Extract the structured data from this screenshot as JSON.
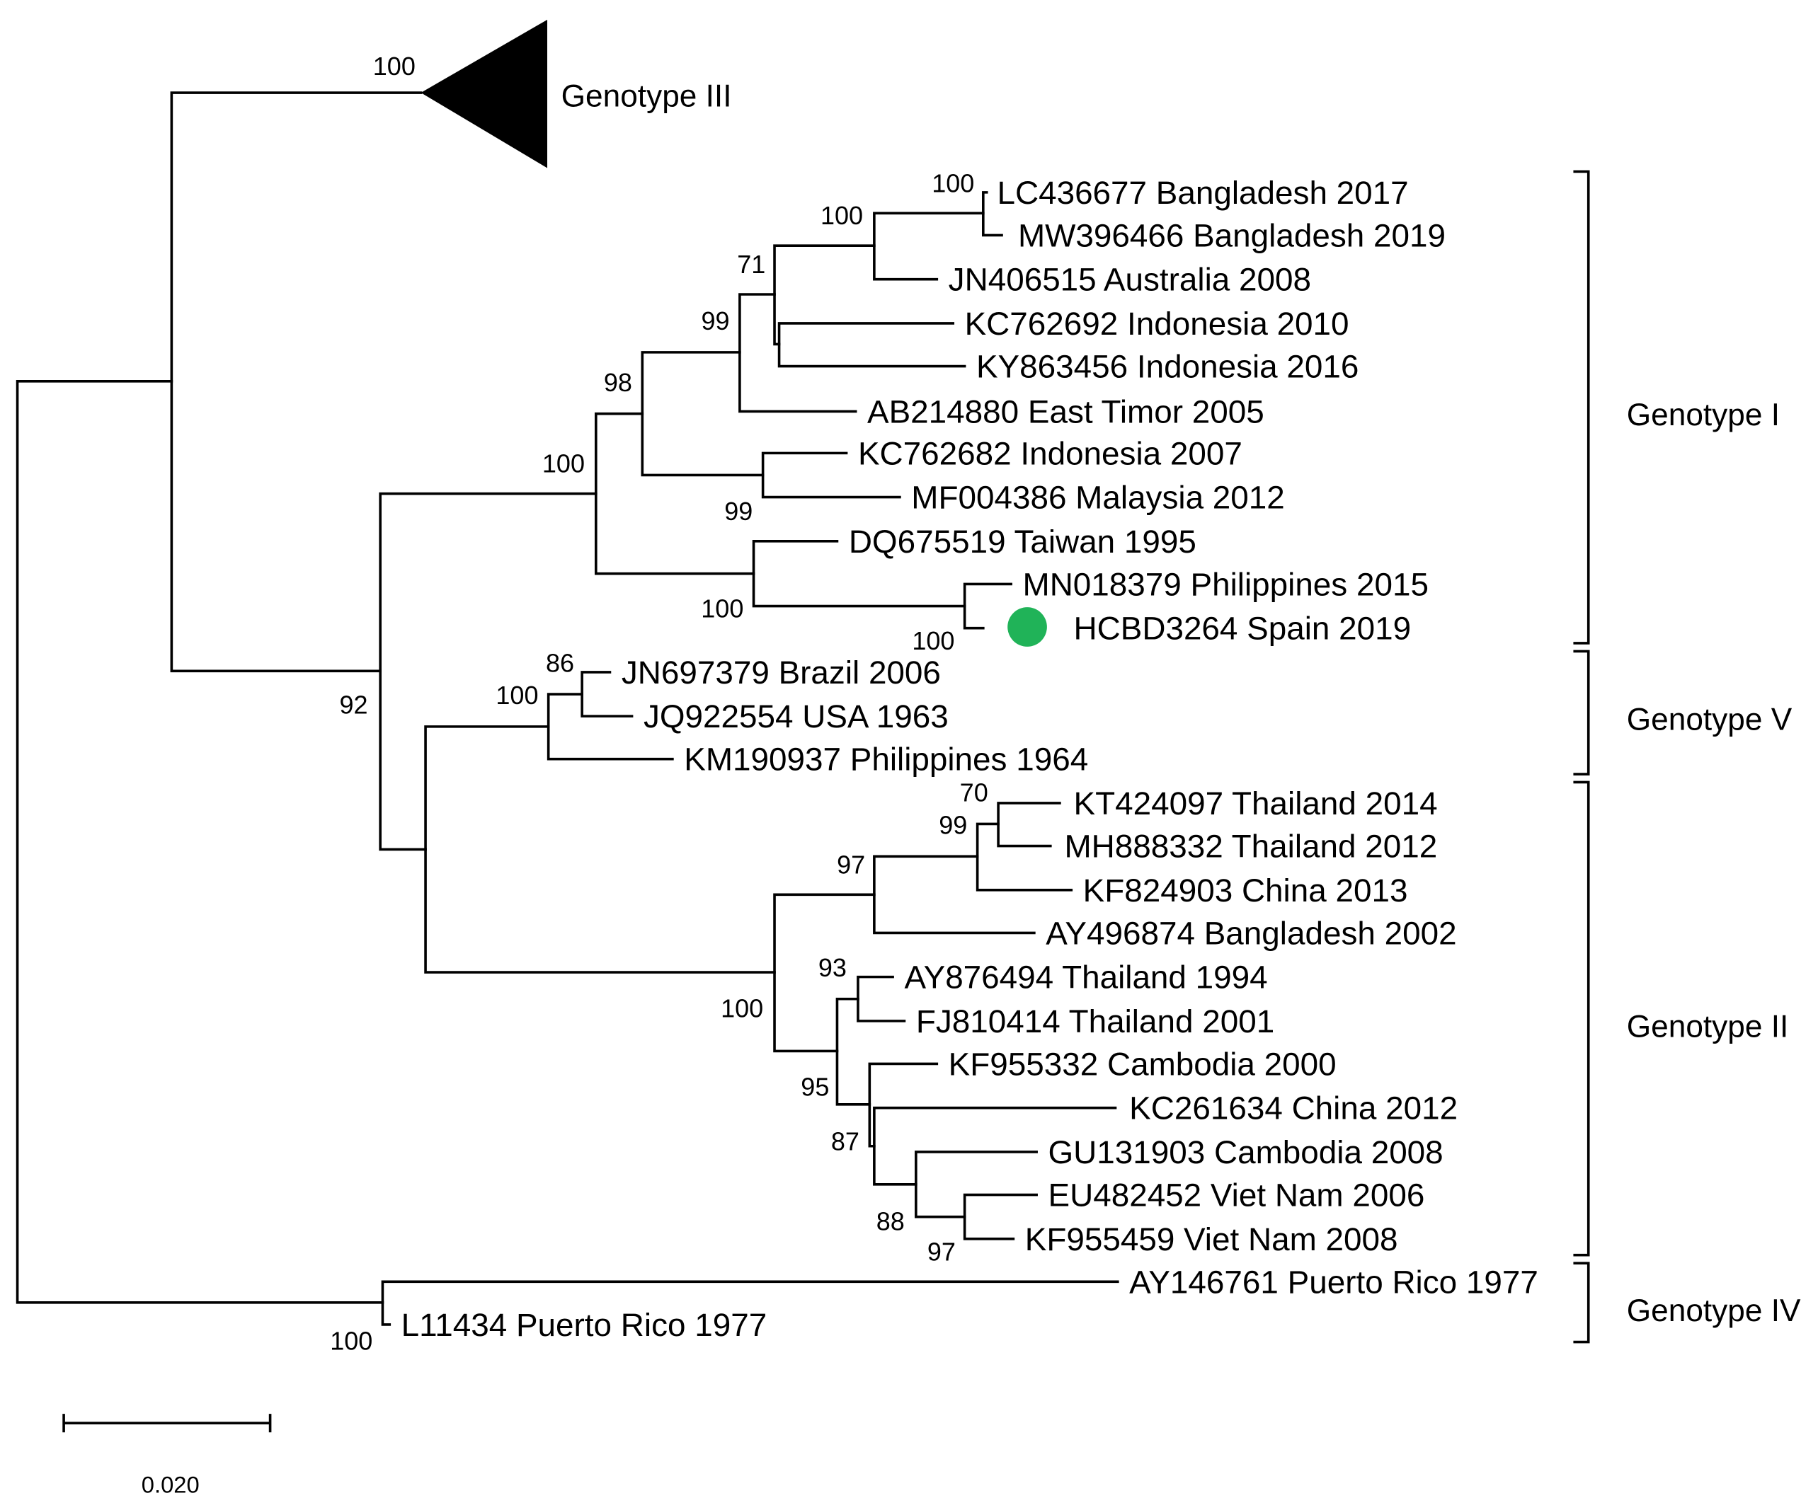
{
  "tree": {
    "collapsed_clade": {
      "label": "Genotype III",
      "bootstrap": "100"
    },
    "leaves": [
      "LC436677 Bangladesh 2017",
      "MW396466 Bangladesh 2019",
      "JN406515 Australia 2008",
      "KC762692 Indonesia 2010",
      "KY863456 Indonesia 2016",
      "AB214880 East Timor 2005",
      "KC762682 Indonesia 2007",
      "MF004386 Malaysia 2012",
      "DQ675519 Taiwan 1995",
      "MN018379 Philippines 2015",
      "HCBD3264 Spain 2019",
      "JN697379 Brazil 2006",
      "JQ922554 USA 1963",
      "KM190937 Philippines 1964",
      "KT424097 Thailand 2014",
      "MH888332 Thailand 2012",
      "KF824903 China 2013",
      "AY496874 Bangladesh 2002",
      "AY876494 Thailand 1994",
      "FJ810414 Thailand 2001",
      "KF955332 Cambodia 2000",
      "KC261634 China 2012",
      "GU131903 Cambodia 2008",
      "EU482452 Viet Nam 2006",
      "KF955459 Viet Nam 2008",
      "AY146761 Puerto Rico 1977",
      "L11434 Puerto Rico 1977"
    ],
    "bootstrap": [
      "100",
      "100",
      "71",
      "99",
      "98",
      "100",
      "99",
      "100",
      "100",
      "86",
      "100",
      "92",
      "70",
      "99",
      "97",
      "93",
      "100",
      "95",
      "87",
      "88",
      "97",
      "100"
    ]
  },
  "genotype_brackets": [
    {
      "label": "Genotype I"
    },
    {
      "label": "Genotype V"
    },
    {
      "label": "Genotype II"
    },
    {
      "label": "Genotype IV"
    }
  ],
  "scale_bar": {
    "label": "0.020"
  },
  "colors": {
    "branch": "#000000",
    "highlight_marker": "#20b358"
  }
}
